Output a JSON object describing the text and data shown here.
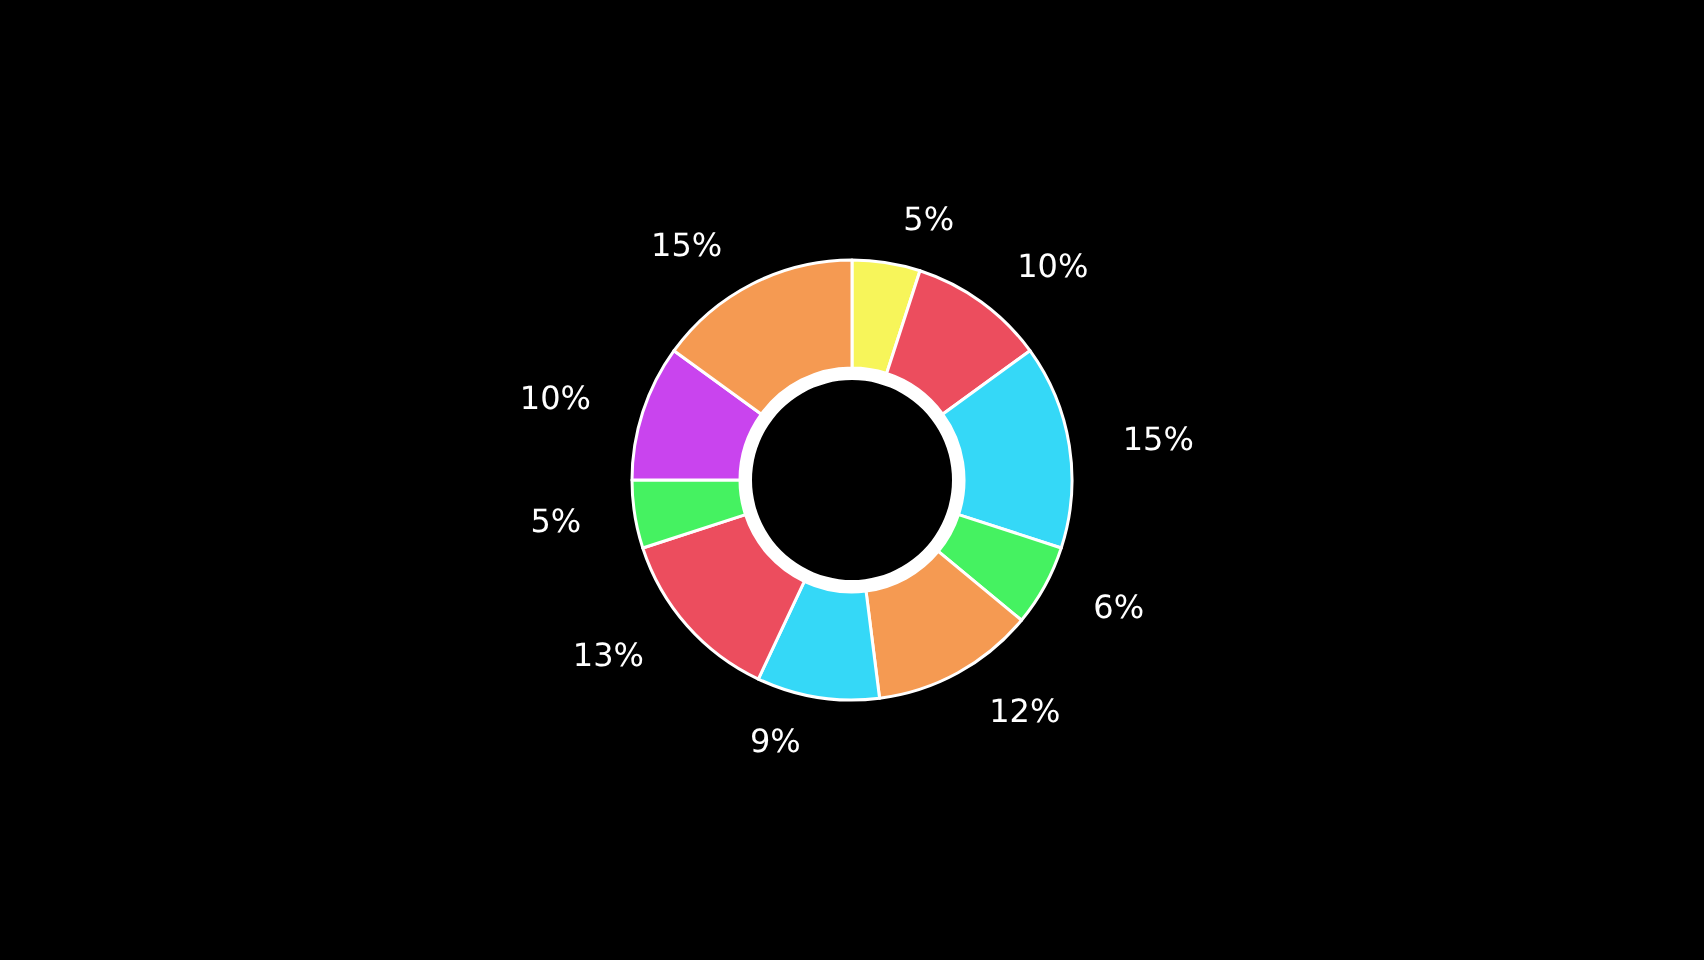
{
  "chart_data": {
    "type": "donut",
    "categories": [
      null,
      null,
      null,
      null,
      null,
      null,
      null,
      null,
      null,
      null
    ],
    "values": [
      5,
      10,
      15,
      6,
      12,
      9,
      13,
      5,
      10,
      15
    ],
    "value_labels": [
      "5%",
      "10%",
      "15%",
      "6%",
      "12%",
      "9%",
      "13%",
      "5%",
      "10%",
      "15%"
    ],
    "colors": [
      "#f7f55a",
      "#ec4d5e",
      "#35d8f7",
      "#45f261",
      "#f59a52",
      "#35d8f7",
      "#ec4d5e",
      "#45f261",
      "#c944ee",
      "#f59a52"
    ]
  }
}
